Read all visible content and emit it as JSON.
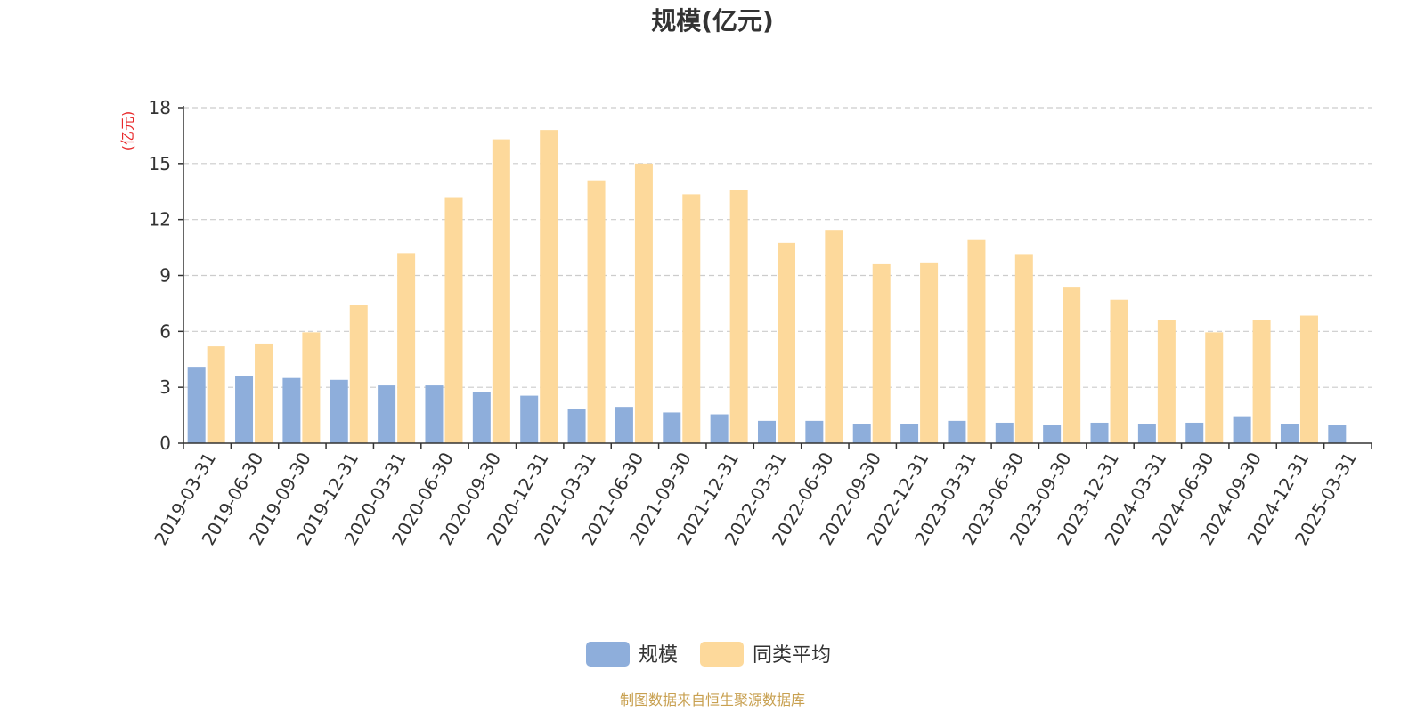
{
  "chart_data": {
    "type": "bar",
    "title": "规模(亿元)",
    "y_unit_label": "(亿元)",
    "y_unit_color": "#e8282a",
    "ylim": [
      0,
      18
    ],
    "y_ticks": [
      0,
      3,
      6,
      9,
      12,
      15,
      18
    ],
    "grid": true,
    "legend_position": "bottom",
    "categories": [
      "2019-03-31",
      "2019-06-30",
      "2019-09-30",
      "2019-12-31",
      "2020-03-31",
      "2020-06-30",
      "2020-09-30",
      "2020-12-31",
      "2021-03-31",
      "2021-06-30",
      "2021-09-30",
      "2021-12-31",
      "2022-03-31",
      "2022-06-30",
      "2022-09-30",
      "2022-12-31",
      "2023-03-31",
      "2023-06-30",
      "2023-09-30",
      "2023-12-31",
      "2024-03-31",
      "2024-06-30",
      "2024-09-30",
      "2024-12-31",
      "2025-03-31"
    ],
    "series": [
      {
        "name": "规模",
        "color": "#8eaedb",
        "values": [
          4.1,
          3.6,
          3.5,
          3.4,
          3.1,
          3.1,
          2.75,
          2.55,
          1.85,
          1.95,
          1.65,
          1.55,
          1.2,
          1.2,
          1.05,
          1.05,
          1.2,
          1.1,
          1.0,
          1.1,
          1.05,
          1.1,
          1.45,
          1.05,
          1.0
        ]
      },
      {
        "name": "同类平均",
        "color": "#fdd99b",
        "values": [
          5.2,
          5.35,
          5.95,
          7.4,
          10.2,
          13.2,
          16.3,
          16.8,
          14.1,
          15.0,
          13.35,
          13.6,
          10.75,
          11.45,
          9.6,
          9.7,
          10.9,
          10.15,
          8.35,
          7.7,
          6.6,
          5.95,
          6.6,
          6.85,
          null
        ]
      }
    ]
  },
  "source_text": "制图数据来自恒生聚源数据库",
  "source_color": "#c8a050"
}
